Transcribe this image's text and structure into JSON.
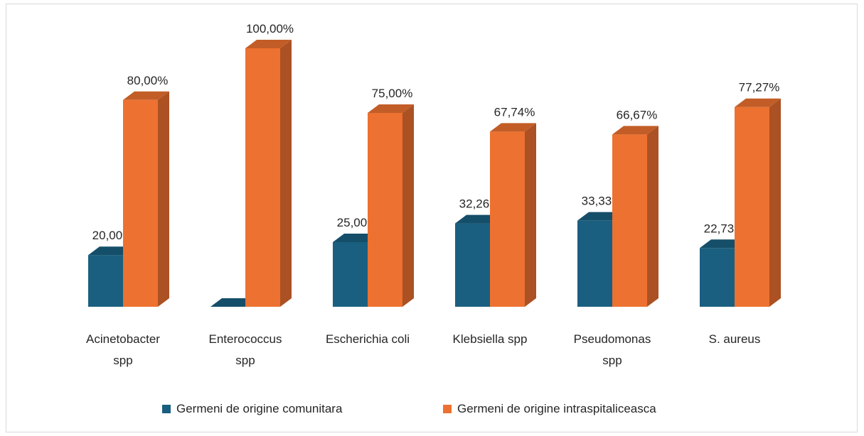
{
  "chart_data": {
    "type": "bar3d",
    "categories": [
      "Acinetobacter spp",
      "Enterococcus spp",
      "Escherichia coli",
      "Klebsiella spp",
      "Pseudomonas spp",
      "S. aureus"
    ],
    "series": [
      {
        "name": "Germeni de origine comunitara",
        "color": "#1a5f80",
        "values": [
          20,
          0,
          25,
          32.26,
          33.33,
          22.73
        ],
        "value_labels": [
          "20,00%",
          null,
          "25,00%",
          "32,26%",
          "33,33%",
          "22,73%"
        ]
      },
      {
        "name": "Germeni de origine intraspitaliceasca",
        "color": "#ed7130",
        "values": [
          80,
          100,
          75,
          67.74,
          66.67,
          77.27
        ],
        "value_labels": [
          "80,00%",
          "100,00%",
          "75,00%",
          "67,74%",
          "66,67%",
          "77,27%"
        ]
      }
    ],
    "ylim": [
      0,
      100
    ]
  }
}
